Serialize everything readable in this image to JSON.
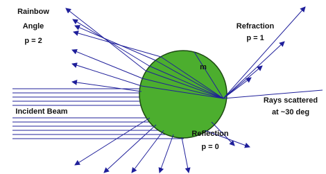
{
  "labels": {
    "rainbow": [
      "Rainbow",
      "Angle",
      "p = 2"
    ],
    "refraction": [
      "Refraction",
      "p = 1"
    ],
    "medium": "m",
    "scattered": [
      "Rays scattered",
      "at ~30 deg"
    ],
    "incident": "Incident Beam",
    "reflection": [
      "Reflection",
      "p = 0"
    ]
  }
}
